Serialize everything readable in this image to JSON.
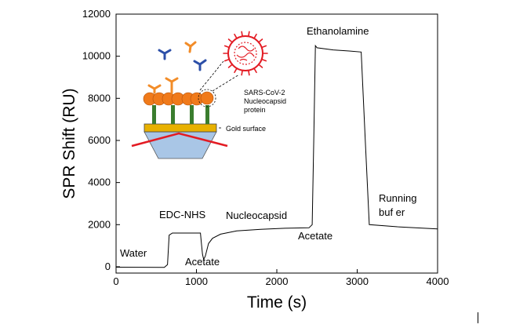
{
  "chart_data": {
    "type": "line",
    "xlabel": "Time (s)",
    "ylabel": "SPR Shift (RU)",
    "xlim": [
      0,
      4000
    ],
    "ylim": [
      -300,
      12000
    ],
    "x_ticks": [
      0,
      1000,
      2000,
      3000,
      4000
    ],
    "y_ticks": [
      0,
      2000,
      4000,
      6000,
      8000,
      10000,
      12000
    ],
    "grid": false,
    "series": [
      {
        "color": "#000000",
        "x": [
          0,
          600,
          640,
          660,
          700,
          1050,
          1060,
          1075,
          1090,
          1110,
          1150,
          1200,
          1300,
          1500,
          1800,
          2100,
          2400,
          2440,
          2460,
          2480,
          2500,
          2700,
          2900,
          3050,
          3100,
          3150,
          3500,
          4000
        ],
        "y": [
          -20,
          -30,
          100,
          1500,
          1600,
          1600,
          1200,
          600,
          350,
          500,
          1100,
          1350,
          1550,
          1700,
          1780,
          1830,
          1850,
          2000,
          6000,
          10500,
          10400,
          10300,
          10250,
          10200,
          6000,
          2000,
          1900,
          1800
        ]
      }
    ]
  },
  "annotations": {
    "water": "Water",
    "edc_nhs": "EDC-NHS",
    "acetate_1": "Acetate",
    "nucleocapsid": "Nucleocapsid",
    "acetate_2": "Acetate",
    "ethanolamine": "Ethanolamine",
    "running_line1": "Running",
    "running_line2": "buf er"
  },
  "inset": {
    "virus_label_line1": "SARS-CoV-2",
    "virus_label_line2": "Nucleocapsid",
    "virus_label_line3": "protein",
    "gold_label": "Gold surface",
    "colors": {
      "virus": "#e31b23",
      "nucleocapsid": "#f07a1a",
      "gold": "#e8b100",
      "prism": "#a9c6e6",
      "laser": "#e31b23",
      "linker": "#3a7d2e",
      "antibody_blue": "#2c4fa8",
      "antibody_orange": "#f28c28"
    }
  }
}
